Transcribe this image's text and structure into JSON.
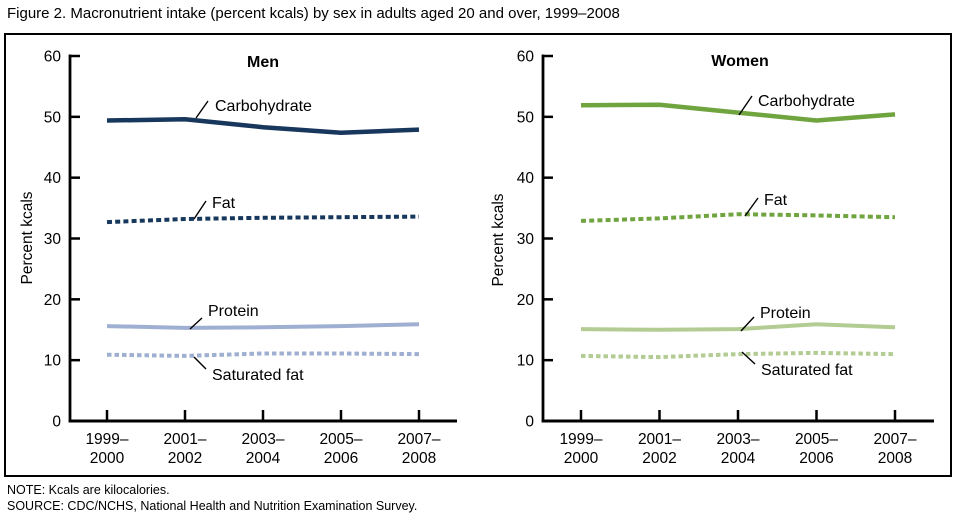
{
  "figure": {
    "title": "Figure 2. Macronutrient intake (percent kcals) by sex in adults aged 20 and over, 1999–2008",
    "note": "NOTE: Kcals are kilocalories.",
    "source": "SOURCE: CDC/NCHS, National Health and Nutrition Examination Survey."
  },
  "chart_data": {
    "type": "line",
    "categories": [
      "1999–2000",
      "2001–2002",
      "2003–2004",
      "2005–2006",
      "2007–2008"
    ],
    "category_lines": [
      [
        "1999–",
        "2000"
      ],
      [
        "2001–",
        "2002"
      ],
      [
        "2003–",
        "2004"
      ],
      [
        "2005–",
        "2006"
      ],
      [
        "2007–",
        "2008"
      ]
    ],
    "ylabel": "Percent kcals",
    "ylim": [
      0,
      60
    ],
    "yticks": [
      0,
      10,
      20,
      30,
      40,
      50,
      60
    ],
    "grid": false,
    "legend_position": "inline-labels-with-leader-lines",
    "panels": [
      {
        "title": "Men",
        "title_color": "#17375D",
        "series": [
          {
            "name": "Carbohydrate",
            "values": [
              49.4,
              49.6,
              48.3,
              47.4,
              47.9
            ],
            "color": "#17375D",
            "style": "solid"
          },
          {
            "name": "Fat",
            "values": [
              32.7,
              33.2,
              33.4,
              33.5,
              33.6
            ],
            "color": "#17375D",
            "style": "dashed"
          },
          {
            "name": "Protein",
            "values": [
              15.6,
              15.3,
              15.4,
              15.6,
              15.9
            ],
            "color": "#9FAFD1",
            "style": "solid"
          },
          {
            "name": "Saturated fat",
            "values": [
              10.9,
              10.7,
              11.1,
              11.1,
              11.0
            ],
            "color": "#9FAFD1",
            "style": "dashed"
          }
        ]
      },
      {
        "title": "Women",
        "title_color": "#70A43E",
        "series": [
          {
            "name": "Carbohydrate",
            "values": [
              51.9,
              52.0,
              50.7,
              49.4,
              50.4
            ],
            "color": "#70A43E",
            "style": "solid"
          },
          {
            "name": "Fat",
            "values": [
              32.9,
              33.3,
              34.0,
              33.8,
              33.5
            ],
            "color": "#70A43E",
            "style": "dashed"
          },
          {
            "name": "Protein",
            "values": [
              15.1,
              15.0,
              15.1,
              15.9,
              15.4
            ],
            "color": "#B3CC93",
            "style": "solid"
          },
          {
            "name": "Saturated fat",
            "values": [
              10.7,
              10.5,
              11.0,
              11.2,
              11.0
            ],
            "color": "#B3CC93",
            "style": "dashed"
          }
        ]
      }
    ]
  }
}
